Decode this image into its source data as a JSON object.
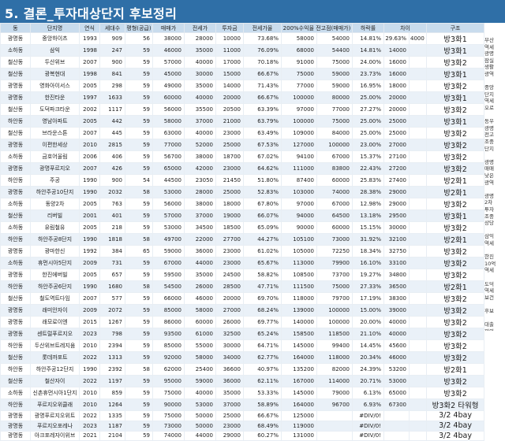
{
  "title": "5. 결론_투자대상단지 후보정리",
  "headers": [
    "동",
    "단지명",
    "연식",
    "세대수",
    "평형(공급)",
    "매매가",
    "전세가",
    "투자금",
    "전세가율",
    "200%수익율 전고점(매매가)",
    "하락률",
    "차이",
    "구조"
  ],
  "rows": [
    [
      "광명동",
      "중앙하이츠",
      "1993",
      "909",
      "56",
      "38000",
      "28000",
      "10000",
      "73.68%",
      "58000",
      "54000",
      "14.81%",
      "29.63%",
      "4000",
      "방3화1"
    ],
    [
      "소하동",
      "삼익",
      "1998",
      "247",
      "59",
      "46000",
      "35000",
      "11000",
      "76.09%",
      "68000",
      "54400",
      "14.81%",
      "14000",
      "",
      "방3화1"
    ],
    [
      "철산동",
      "두산위브",
      "2007",
      "900",
      "59",
      "57000",
      "40000",
      "17000",
      "70.18%",
      "91000",
      "75000",
      "24.00%",
      "16000",
      "",
      "방3화2"
    ],
    [
      "철산동",
      "광복현대",
      "1998",
      "841",
      "59",
      "45000",
      "30000",
      "15000",
      "66.67%",
      "75000",
      "59000",
      "23.73%",
      "16000",
      "",
      "방3화1"
    ],
    [
      "광명동",
      "영화아이서스",
      "2005",
      "298",
      "59",
      "49000",
      "35000",
      "14000",
      "71.43%",
      "77000",
      "59000",
      "16.95%",
      "18000",
      "",
      "방3화2"
    ],
    [
      "광명동",
      "한진타운",
      "1997",
      "1633",
      "59",
      "60000",
      "40000",
      "20000",
      "66.67%",
      "100000",
      "80000",
      "25.00%",
      "20000",
      "",
      "방3화1"
    ],
    [
      "철산동",
      "도덕파크타운",
      "2002",
      "1117",
      "59",
      "56000",
      "35500",
      "20500",
      "63.39%",
      "97000",
      "77000",
      "27.27%",
      "20000",
      "",
      "방3화2"
    ],
    [
      "하안동",
      "영남아파트",
      "2005",
      "442",
      "59",
      "58000",
      "37000",
      "21000",
      "63.79%",
      "100000",
      "75000",
      "25.00%",
      "25000",
      "",
      "방3화1"
    ],
    [
      "철산동",
      "브라운스톤",
      "2007",
      "445",
      "59",
      "63000",
      "40000",
      "23000",
      "63.49%",
      "109000",
      "84000",
      "25.00%",
      "25000",
      "",
      "방3화2"
    ],
    [
      "광명동",
      "이편한세상",
      "2010",
      "2815",
      "59",
      "77000",
      "52000",
      "25000",
      "67.53%",
      "127000",
      "100000",
      "23.00%",
      "27000",
      "",
      "방3화2"
    ],
    [
      "소하동",
      "금호어울림",
      "2006",
      "406",
      "59",
      "56700",
      "38000",
      "18700",
      "67.02%",
      "94100",
      "67000",
      "15.37%",
      "27100",
      "",
      "방3화2"
    ],
    [
      "광명동",
      "광명푸르지오",
      "2007",
      "426",
      "59",
      "65000",
      "42000",
      "23000",
      "64.62%",
      "111000",
      "83800",
      "22.43%",
      "27200",
      "",
      "방3화2"
    ],
    [
      "하안동",
      "주공",
      "1990",
      "900",
      "54",
      "44500",
      "23050",
      "21450",
      "51.80%",
      "87400",
      "60000",
      "25.83%",
      "27400",
      "",
      "방2화1"
    ],
    [
      "광명동",
      "하안주공10단지",
      "1990",
      "2032",
      "58",
      "53000",
      "28000",
      "25000",
      "52.83%",
      "103000",
      "74000",
      "28.38%",
      "29000",
      "",
      "방2화1"
    ],
    [
      "소하동",
      "동양2차",
      "2005",
      "763",
      "59",
      "56000",
      "38000",
      "18000",
      "67.80%",
      "97000",
      "67000",
      "12.98%",
      "29000",
      "",
      "방3화2"
    ],
    [
      "철산동",
      "리버빌",
      "2001",
      "401",
      "59",
      "57000",
      "37000",
      "19000",
      "66.07%",
      "94000",
      "64500",
      "13.18%",
      "29500",
      "",
      "방3화1"
    ],
    [
      "소하동",
      "유림철유",
      "2005",
      "218",
      "59",
      "53000",
      "34500",
      "18500",
      "65.09%",
      "90000",
      "60000",
      "15.15%",
      "30000",
      "",
      "방3화2"
    ],
    [
      "하안동",
      "하안주공8단지",
      "1990",
      "1818",
      "58",
      "49700",
      "22000",
      "27700",
      "44.27%",
      "105100",
      "73000",
      "31.92%",
      "32100",
      "",
      "방2화1"
    ],
    [
      "광명동",
      "광마한신",
      "1992",
      "384",
      "65",
      "59000",
      "36000",
      "23000",
      "61.02%",
      "105000",
      "72250",
      "18.34%",
      "32750",
      "",
      "방3화2"
    ],
    [
      "소하동",
      "휴먼시아5단지",
      "2009",
      "731",
      "59",
      "67000",
      "44000",
      "23000",
      "65.67%",
      "113000",
      "79900",
      "16.10%",
      "33100",
      "",
      "방3화2"
    ],
    [
      "광명동",
      "한진에버빌",
      "2005",
      "657",
      "59",
      "59500",
      "35000",
      "24500",
      "58.82%",
      "108500",
      "73700",
      "19.27%",
      "34800",
      "",
      "방3화2"
    ],
    [
      "하안동",
      "하안주공6단지",
      "1990",
      "1680",
      "58",
      "54500",
      "26000",
      "28500",
      "47.71%",
      "111500",
      "75000",
      "27.33%",
      "36500",
      "",
      "방2화1"
    ],
    [
      "철산동",
      "철도역트다임",
      "2007",
      "577",
      "59",
      "66000",
      "46000",
      "20000",
      "69.70%",
      "118000",
      "79700",
      "17.19%",
      "38300",
      "",
      "방3화2"
    ],
    [
      "광명동",
      "래미안자이",
      "2009",
      "2072",
      "59",
      "85000",
      "58000",
      "27000",
      "68.24%",
      "139000",
      "100000",
      "15.00%",
      "39000",
      "",
      "방3화2"
    ],
    [
      "광명동",
      "래모로이엔",
      "2015",
      "1267",
      "59",
      "86000",
      "60000",
      "26000",
      "69.77%",
      "140000",
      "100000",
      "20.00%",
      "40000",
      "",
      "방3화2"
    ],
    [
      "광명동",
      "센트럴푸르지오",
      "2023",
      "798",
      "59",
      "93500",
      "61000",
      "32500",
      "65.24%",
      "158500",
      "118500",
      "21.10%",
      "40000",
      "",
      "방3화2"
    ],
    [
      "하안동",
      "두산위브트레지움",
      "2010",
      "2394",
      "59",
      "85000",
      "55000",
      "30000",
      "64.71%",
      "145000",
      "99400",
      "14.45%",
      "45600",
      "",
      "방3화2"
    ],
    [
      "철산동",
      "롯데까포트",
      "2022",
      "1313",
      "59",
      "92000",
      "58000",
      "34000",
      "62.77%",
      "164000",
      "118000",
      "20.34%",
      "46000",
      "",
      "방3화2"
    ],
    [
      "하안동",
      "하안주공12단지",
      "1990",
      "2392",
      "58",
      "62000",
      "25400",
      "36600",
      "40.97%",
      "135200",
      "82000",
      "24.39%",
      "53200",
      "",
      "방2화1"
    ],
    [
      "철산동",
      "철산자이",
      "2022",
      "1197",
      "59",
      "95000",
      "59000",
      "36000",
      "62.11%",
      "167000",
      "114000",
      "20.71%",
      "53000",
      "",
      "방3화2"
    ],
    [
      "소하동",
      "신촌휴먼시아1단지",
      "2010",
      "859",
      "59",
      "75000",
      "40000",
      "35000",
      "53.33%",
      "145000",
      "79000",
      "6.13%",
      "65000",
      "",
      "방3화2"
    ],
    [
      "하안동",
      "푸르지오위클래",
      "2010",
      "1264",
      "59",
      "90000",
      "53000",
      "37000",
      "58.89%",
      "164000",
      "96700",
      "6.93%",
      "67300",
      "",
      "방3화2 타워형"
    ],
    [
      "광명동",
      "광명푸르지오위트",
      "2022",
      "1335",
      "59",
      "75000",
      "50000",
      "25000",
      "66.67%",
      "125000",
      "",
      "#DIV/0!",
      "",
      "",
      "3/2 4bay"
    ],
    [
      "광명동",
      "푸르지오포레나",
      "2023",
      "1187",
      "59",
      "73000",
      "50000",
      "23000",
      "68.49%",
      "119000",
      "",
      "#DIV/0!",
      "",
      "",
      "3/2 4bay"
    ],
    [
      "광명동",
      "아크포레자이위브",
      "2021",
      "2104",
      "59",
      "74000",
      "44000",
      "29000",
      "60.27%",
      "131000",
      "",
      "#DIV/0!",
      "",
      "",
      "3/2 4bay"
    ]
  ],
  "side_notes": [
    "부산",
    "역세",
    "광명",
    "잠실",
    "생활",
    "광역",
    "",
    "중앙",
    "단지",
    "역세",
    "오로",
    "",
    "동우",
    "광명",
    "전고",
    "조중",
    "단지",
    "",
    "광명",
    "매매",
    "낮은",
    "광역",
    "",
    "광명",
    "2차",
    "투자",
    "조중",
    "상당",
    "",
    "삼익",
    "역세",
    "",
    "한진",
    "10억",
    "역세",
    "",
    "도덕",
    "역세",
    "보건",
    "",
    "후보",
    "",
    "대출",
    "제외"
  ]
}
